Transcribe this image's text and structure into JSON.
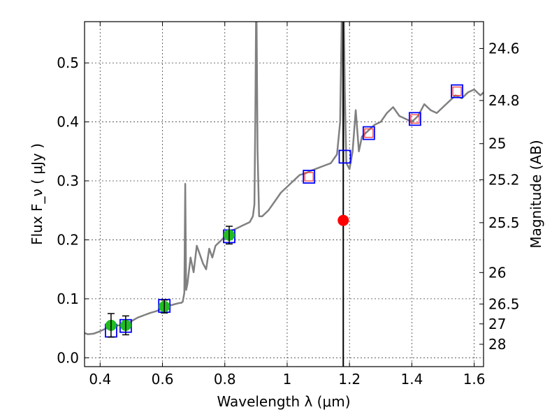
{
  "chart_data": {
    "type": "scatter",
    "title": "",
    "xlabel": "Wavelength  λ (μm)",
    "ylabel": "Flux  F_ν  ( μJy )",
    "y2label": "Magnitude (AB)",
    "xlim": [
      0.35,
      1.63
    ],
    "ylim": [
      -0.015,
      0.57
    ],
    "grid": true,
    "legend": "none",
    "xticks": [
      0.4,
      0.6,
      0.8,
      1.0,
      1.2,
      1.4,
      1.6
    ],
    "xtick_labels": [
      "0.4",
      "0.6",
      "0.8",
      "1",
      "1.2",
      "1.4",
      "1.6"
    ],
    "yticks": [
      0.0,
      0.1,
      0.2,
      0.3,
      0.4,
      0.5
    ],
    "ytick_labels": [
      "0.0",
      "0.1",
      "0.2",
      "0.3",
      "0.4",
      "0.5"
    ],
    "mag_ticks": [
      {
        "label": "24.6",
        "flux": 0.5245
      },
      {
        "label": "24.8",
        "flux": 0.4363
      },
      {
        "label": "25",
        "flux": 0.3631
      },
      {
        "label": "25.2",
        "flux": 0.302
      },
      {
        "label": "25.5",
        "flux": 0.2291
      },
      {
        "label": "26",
        "flux": 0.1445
      },
      {
        "label": "26.5",
        "flux": 0.0912
      },
      {
        "label": "27",
        "flux": 0.0575
      },
      {
        "label": "28",
        "flux": 0.0229
      }
    ],
    "colors": {
      "model": "#808080",
      "model_points": "#0000ff",
      "obs_points": "#22bb22",
      "outlier": "#ff0000",
      "upper_limits": "#ff3333",
      "vline": "#000000"
    },
    "vline_x": 1.18,
    "series": [
      {
        "type": "line",
        "x": [
          0.35,
          0.36,
          0.38,
          0.4,
          0.42,
          0.44,
          0.46,
          0.48,
          0.5,
          0.52,
          0.54,
          0.56,
          0.58,
          0.6,
          0.62,
          0.64,
          0.655,
          0.66,
          0.665,
          0.67,
          0.673,
          0.676,
          0.68,
          0.69,
          0.7,
          0.71,
          0.72,
          0.73,
          0.74,
          0.75,
          0.76,
          0.77,
          0.78,
          0.79,
          0.8,
          0.81,
          0.82,
          0.84,
          0.86,
          0.88,
          0.89,
          0.895,
          0.898,
          0.9,
          0.902,
          0.905,
          0.91,
          0.92,
          0.94,
          0.96,
          0.98,
          1.0,
          1.02,
          1.04,
          1.06,
          1.08,
          1.1,
          1.12,
          1.14,
          1.16,
          1.17,
          1.175,
          1.178,
          1.18,
          1.182,
          1.185,
          1.19,
          1.2,
          1.21,
          1.22,
          1.23,
          1.24,
          1.26,
          1.28,
          1.3,
          1.32,
          1.34,
          1.36,
          1.38,
          1.4,
          1.42,
          1.44,
          1.46,
          1.48,
          1.5,
          1.52,
          1.54,
          1.56,
          1.58,
          1.6,
          1.62,
          1.63
        ],
        "y": [
          0.042,
          0.04,
          0.041,
          0.045,
          0.05,
          0.053,
          0.055,
          0.058,
          0.062,
          0.068,
          0.072,
          0.076,
          0.079,
          0.083,
          0.088,
          0.091,
          0.093,
          0.093,
          0.095,
          0.11,
          0.295,
          0.115,
          0.125,
          0.17,
          0.145,
          0.19,
          0.175,
          0.16,
          0.15,
          0.185,
          0.17,
          0.19,
          0.195,
          0.2,
          0.205,
          0.212,
          0.215,
          0.22,
          0.225,
          0.23,
          0.24,
          0.26,
          0.42,
          0.57,
          0.57,
          0.35,
          0.24,
          0.24,
          0.25,
          0.265,
          0.28,
          0.29,
          0.3,
          0.31,
          0.313,
          0.318,
          0.322,
          0.326,
          0.33,
          0.345,
          0.4,
          0.57,
          0.57,
          0.33,
          0.57,
          0.45,
          0.33,
          0.32,
          0.35,
          0.42,
          0.35,
          0.375,
          0.385,
          0.395,
          0.4,
          0.415,
          0.425,
          0.41,
          0.405,
          0.4,
          0.41,
          0.43,
          0.42,
          0.415,
          0.425,
          0.435,
          0.445,
          0.44,
          0.45,
          0.455,
          0.445,
          0.45
        ]
      },
      {
        "type": "scatter",
        "marker": "square",
        "x": [
          0.435,
          0.482,
          0.606,
          0.814,
          1.07,
          1.185,
          1.262,
          1.41,
          1.545
        ],
        "y": [
          0.046,
          0.054,
          0.088,
          0.206,
          0.307,
          0.341,
          0.381,
          0.405,
          0.452
        ]
      },
      {
        "type": "scatter",
        "marker": "circle",
        "x": [
          0.435,
          0.482,
          0.606,
          0.814
        ],
        "y": [
          0.055,
          0.055,
          0.087,
          0.208
        ],
        "yerr": [
          0.02,
          0.016,
          0.011,
          0.015
        ]
      },
      {
        "type": "scatter",
        "marker": "circle",
        "x": [
          1.18
        ],
        "y": [
          0.233
        ]
      },
      {
        "type": "upper_limit",
        "marker": "square",
        "x": [
          1.07,
          1.262,
          1.41,
          1.545
        ],
        "y": [
          0.307,
          0.381,
          0.405,
          0.452
        ]
      }
    ]
  }
}
